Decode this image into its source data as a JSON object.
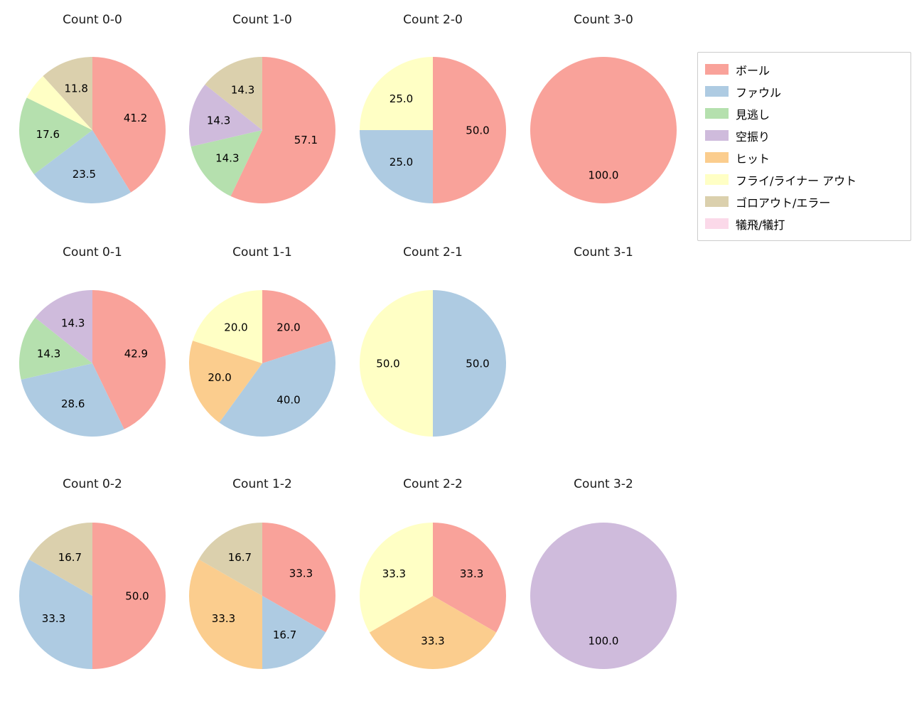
{
  "figure": {
    "background": "#ffffff"
  },
  "legend": {
    "items": [
      {
        "label": "ボール",
        "color": "#f9a29a"
      },
      {
        "label": "ファウル",
        "color": "#aecbe2"
      },
      {
        "label": "見逃し",
        "color": "#b5e0ae"
      },
      {
        "label": "空振り",
        "color": "#cfbbdc"
      },
      {
        "label": "ヒット",
        "color": "#fbcd8e"
      },
      {
        "label": "フライ/ライナー アウト",
        "color": "#ffffc5"
      },
      {
        "label": "ゴロアウト/エラー",
        "color": "#dbd0ad"
      },
      {
        "label": "犠飛/犠打",
        "color": "#fbd9e9"
      }
    ]
  },
  "chart_data": [
    {
      "type": "pie",
      "title": "Count 0-0",
      "grid": {
        "row": 0,
        "col": 0
      },
      "start_angle_deg": 90,
      "direction": "clockwise",
      "slices": [
        {
          "category": "ボール",
          "value": 41.2,
          "label": "41.2"
        },
        {
          "category": "ファウル",
          "value": 23.5,
          "label": "23.5"
        },
        {
          "category": "見逃し",
          "value": 17.6,
          "label": "17.6"
        },
        {
          "category": "フライ/ライナー アウト",
          "value": 5.9,
          "label": ""
        },
        {
          "category": "ゴロアウト/エラー",
          "value": 11.8,
          "label": "11.8"
        }
      ]
    },
    {
      "type": "pie",
      "title": "Count 1-0",
      "grid": {
        "row": 0,
        "col": 1
      },
      "start_angle_deg": 90,
      "direction": "clockwise",
      "slices": [
        {
          "category": "ボール",
          "value": 57.1,
          "label": "57.1"
        },
        {
          "category": "見逃し",
          "value": 14.3,
          "label": "14.3"
        },
        {
          "category": "空振り",
          "value": 14.3,
          "label": "14.3"
        },
        {
          "category": "ゴロアウト/エラー",
          "value": 14.3,
          "label": "14.3"
        }
      ]
    },
    {
      "type": "pie",
      "title": "Count 2-0",
      "grid": {
        "row": 0,
        "col": 2
      },
      "start_angle_deg": 90,
      "direction": "clockwise",
      "slices": [
        {
          "category": "ボール",
          "value": 50.0,
          "label": "50.0"
        },
        {
          "category": "ファウル",
          "value": 25.0,
          "label": "25.0"
        },
        {
          "category": "フライ/ライナー アウト",
          "value": 25.0,
          "label": "25.0"
        }
      ]
    },
    {
      "type": "pie",
      "title": "Count 3-0",
      "grid": {
        "row": 0,
        "col": 3
      },
      "start_angle_deg": 90,
      "direction": "clockwise",
      "slices": [
        {
          "category": "ボール",
          "value": 100.0,
          "label": "100.0"
        }
      ]
    },
    {
      "type": "pie",
      "title": "Count 0-1",
      "grid": {
        "row": 1,
        "col": 0
      },
      "start_angle_deg": 90,
      "direction": "clockwise",
      "slices": [
        {
          "category": "ボール",
          "value": 42.9,
          "label": "42.9"
        },
        {
          "category": "ファウル",
          "value": 28.6,
          "label": "28.6"
        },
        {
          "category": "見逃し",
          "value": 14.3,
          "label": "14.3"
        },
        {
          "category": "空振り",
          "value": 14.3,
          "label": "14.3"
        }
      ]
    },
    {
      "type": "pie",
      "title": "Count 1-1",
      "grid": {
        "row": 1,
        "col": 1
      },
      "start_angle_deg": 90,
      "direction": "clockwise",
      "slices": [
        {
          "category": "ボール",
          "value": 20.0,
          "label": "20.0"
        },
        {
          "category": "ファウル",
          "value": 40.0,
          "label": "40.0"
        },
        {
          "category": "ヒット",
          "value": 20.0,
          "label": "20.0"
        },
        {
          "category": "フライ/ライナー アウト",
          "value": 20.0,
          "label": "20.0"
        }
      ]
    },
    {
      "type": "pie",
      "title": "Count 2-1",
      "grid": {
        "row": 1,
        "col": 2
      },
      "start_angle_deg": 90,
      "direction": "clockwise",
      "slices": [
        {
          "category": "ファウル",
          "value": 50.0,
          "label": "50.0"
        },
        {
          "category": "フライ/ライナー アウト",
          "value": 50.0,
          "label": "50.0"
        }
      ]
    },
    {
      "type": "pie",
      "title": "Count 3-1",
      "grid": {
        "row": 1,
        "col": 3
      },
      "start_angle_deg": 90,
      "direction": "clockwise",
      "slices": []
    },
    {
      "type": "pie",
      "title": "Count 0-2",
      "grid": {
        "row": 2,
        "col": 0
      },
      "start_angle_deg": 90,
      "direction": "clockwise",
      "slices": [
        {
          "category": "ボール",
          "value": 50.0,
          "label": "50.0"
        },
        {
          "category": "ファウル",
          "value": 33.3,
          "label": "33.3"
        },
        {
          "category": "ゴロアウト/エラー",
          "value": 16.7,
          "label": "16.7"
        }
      ]
    },
    {
      "type": "pie",
      "title": "Count 1-2",
      "grid": {
        "row": 2,
        "col": 1
      },
      "start_angle_deg": 90,
      "direction": "clockwise",
      "slices": [
        {
          "category": "ボール",
          "value": 33.3,
          "label": "33.3"
        },
        {
          "category": "ファウル",
          "value": 16.7,
          "label": "16.7"
        },
        {
          "category": "ヒット",
          "value": 33.3,
          "label": "33.3"
        },
        {
          "category": "ゴロアウト/エラー",
          "value": 16.7,
          "label": "16.7"
        }
      ]
    },
    {
      "type": "pie",
      "title": "Count 2-2",
      "grid": {
        "row": 2,
        "col": 2
      },
      "start_angle_deg": 90,
      "direction": "clockwise",
      "slices": [
        {
          "category": "ボール",
          "value": 33.3,
          "label": "33.3"
        },
        {
          "category": "ヒット",
          "value": 33.3,
          "label": "33.3"
        },
        {
          "category": "フライ/ライナー アウト",
          "value": 33.3,
          "label": "33.3"
        }
      ]
    },
    {
      "type": "pie",
      "title": "Count 3-2",
      "grid": {
        "row": 2,
        "col": 3
      },
      "start_angle_deg": 90,
      "direction": "clockwise",
      "slices": [
        {
          "category": "空振り",
          "value": 100.0,
          "label": "100.0"
        }
      ]
    }
  ]
}
